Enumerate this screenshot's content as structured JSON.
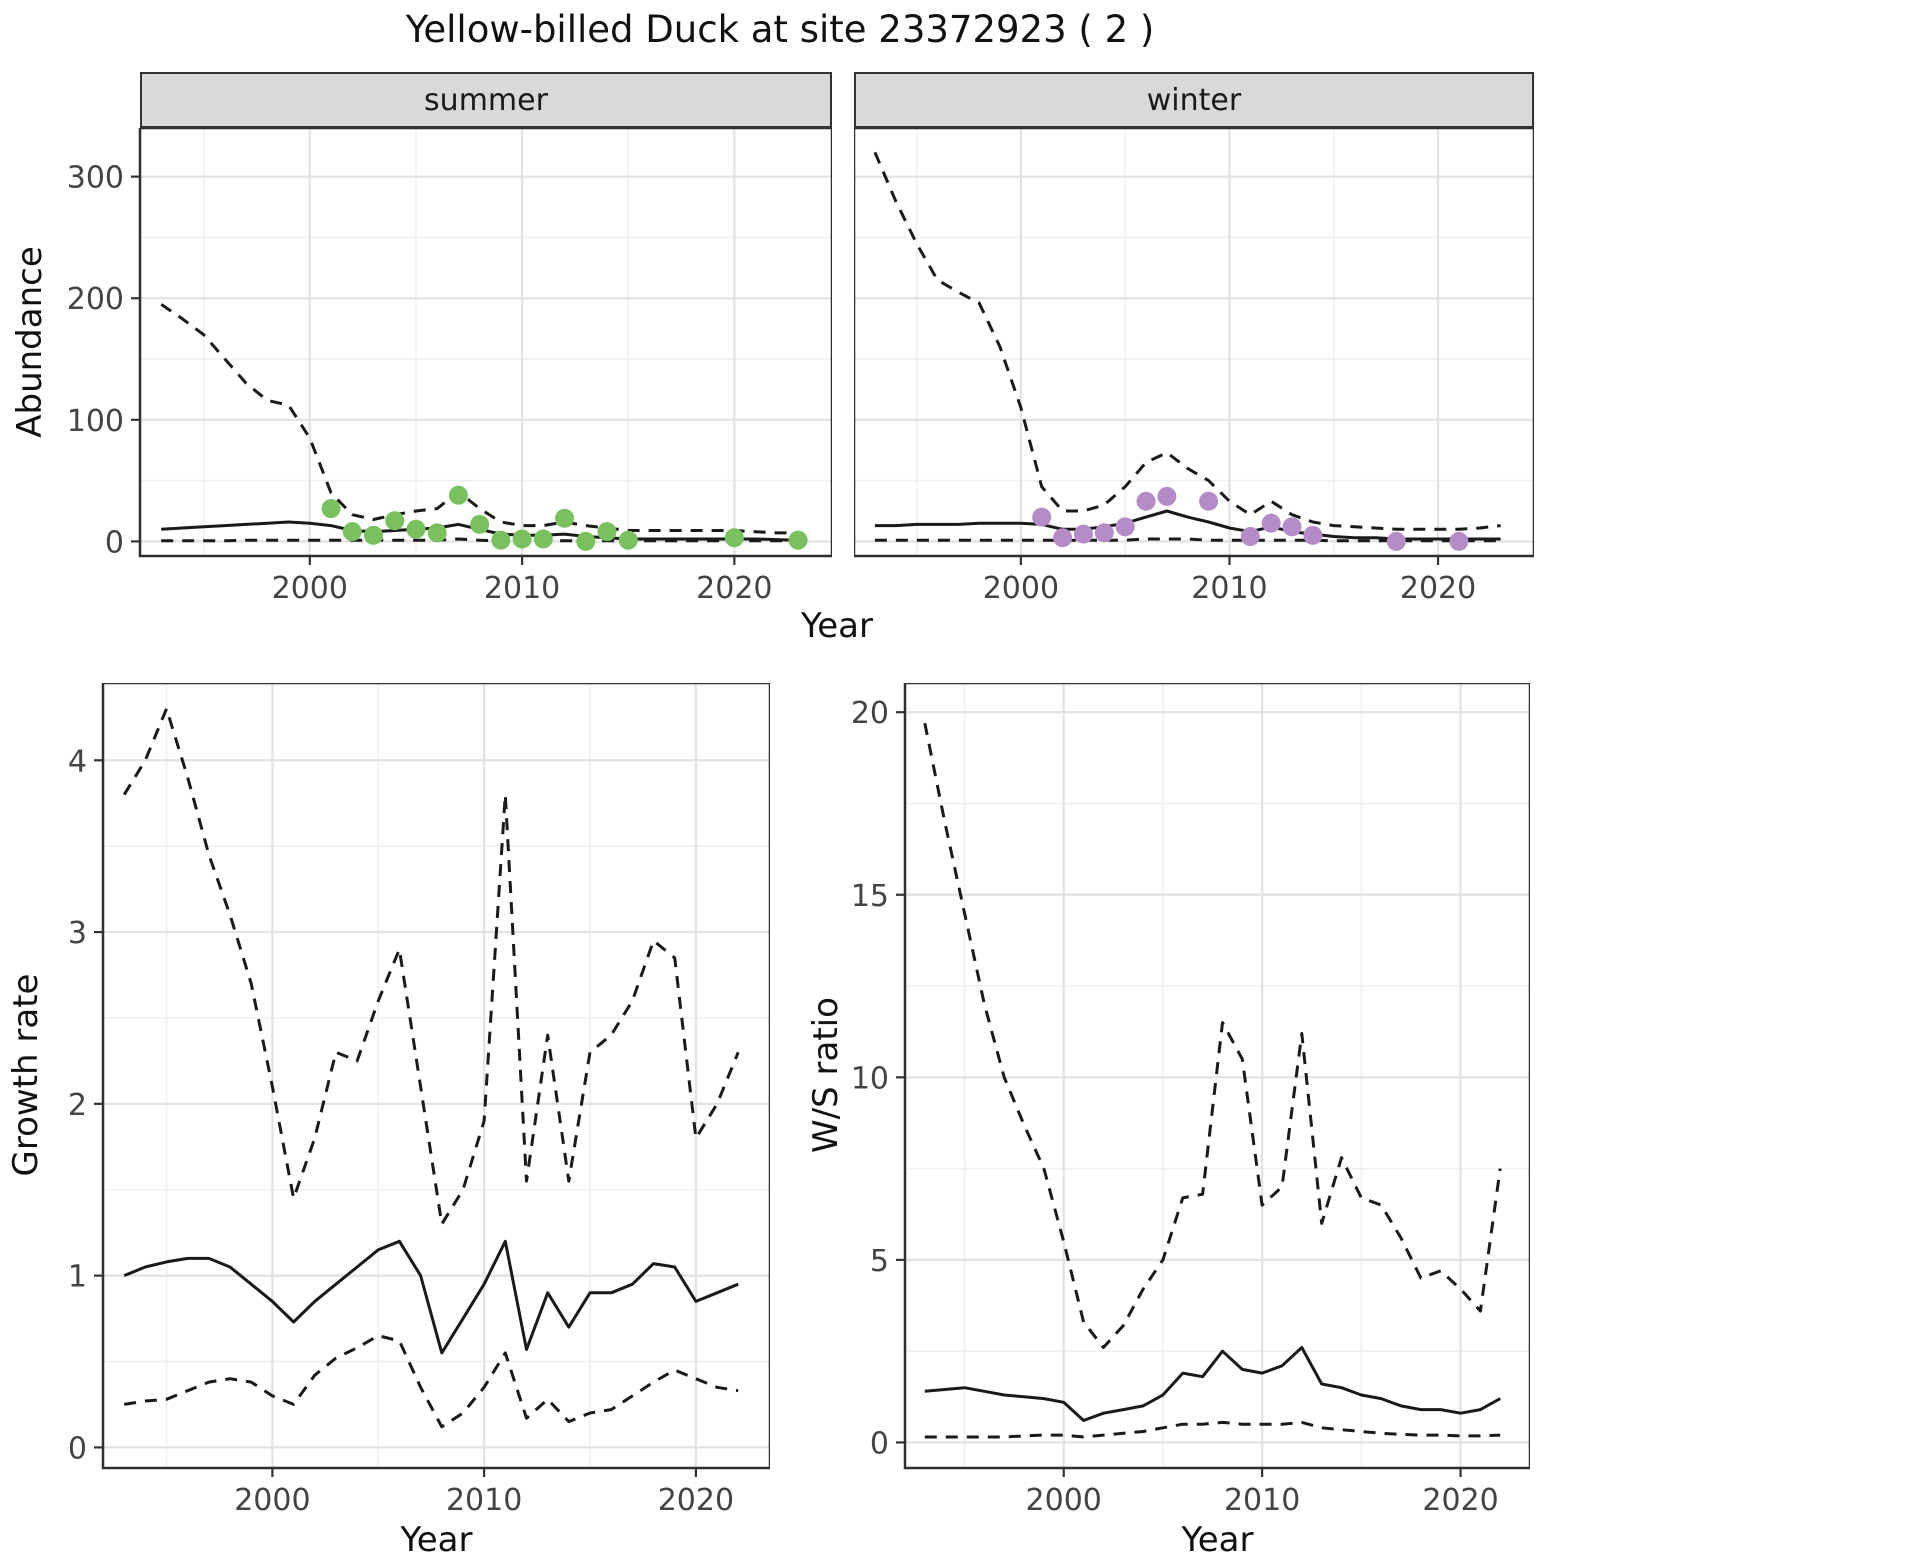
{
  "title": "Yellow-billed Duck at site 23372923 ( 2 )",
  "background": "#ffffff",
  "style": {
    "line_color": "#1a1a1a",
    "grid_major": "#e2e2e2",
    "grid_minor": "#f0f0f0",
    "panel_border": "#2f2f2f",
    "strip_fill": "#d9d9d9",
    "tick_text": "#444444",
    "summer_point_color": "#78c15e",
    "winter_point_color": "#b58cc8"
  },
  "chart_data": [
    {
      "id": "abundance-summer",
      "type": "line",
      "facet": "summer",
      "xlabel": "Year",
      "ylabel": "Abundance",
      "xlim": [
        1992,
        2024.6
      ],
      "ylim": [
        -12,
        340
      ],
      "xticks": [
        2000,
        2010,
        2020
      ],
      "yticks": [
        0,
        100,
        200,
        300
      ],
      "x": [
        1993,
        1994,
        1995,
        1996,
        1997,
        1998,
        1999,
        2000,
        2001,
        2002,
        2003,
        2004,
        2005,
        2006,
        2007,
        2008,
        2009,
        2010,
        2011,
        2012,
        2013,
        2014,
        2015,
        2016,
        2017,
        2018,
        2019,
        2020,
        2021,
        2022,
        2023
      ],
      "series": [
        {
          "name": "upper-95ci",
          "style": "dashed",
          "y": [
            195,
            183,
            170,
            150,
            130,
            116,
            112,
            85,
            40,
            22,
            18,
            22,
            25,
            27,
            41,
            27,
            16,
            13,
            13,
            16,
            13,
            11,
            9,
            9,
            9,
            9,
            9,
            9,
            8,
            7,
            7
          ]
        },
        {
          "name": "estimate",
          "style": "solid",
          "y": [
            10,
            11,
            12,
            13,
            14,
            15,
            16,
            15,
            13,
            9,
            8,
            9,
            10,
            11,
            14,
            10,
            6,
            5,
            5,
            6,
            4,
            3,
            2,
            2,
            2,
            2,
            2,
            2,
            2,
            1.5,
            1
          ]
        },
        {
          "name": "lower-95ci",
          "style": "dashed",
          "y": [
            0.5,
            0.5,
            0.5,
            0.5,
            1,
            1,
            1,
            1,
            1,
            1,
            1,
            1,
            1,
            1,
            2,
            1,
            0.5,
            0.5,
            0.5,
            0.5,
            0.5,
            0.5,
            0.5,
            0.5,
            0.5,
            0.5,
            0.5,
            0.5,
            0.5,
            0.5,
            0.5
          ]
        }
      ],
      "points": {
        "name": "observed-counts",
        "color": "#78c15e",
        "x": [
          2001,
          2002,
          2003,
          2004,
          2005,
          2006,
          2007,
          2008,
          2009,
          2010,
          2011,
          2012,
          2013,
          2014,
          2015,
          2020,
          2023
        ],
        "y": [
          27,
          8,
          5,
          17,
          10,
          7,
          38,
          14,
          1,
          2,
          2,
          19,
          0,
          8,
          1,
          3,
          1
        ]
      }
    },
    {
      "id": "abundance-winter",
      "type": "line",
      "facet": "winter",
      "xlabel": "Year",
      "ylabel": "Abundance",
      "xlim": [
        1992,
        2024.6
      ],
      "ylim": [
        -12,
        340
      ],
      "xticks": [
        2000,
        2010,
        2020
      ],
      "yticks": [
        0,
        100,
        200,
        300
      ],
      "x": [
        1993,
        1994,
        1995,
        1996,
        1997,
        1998,
        1999,
        2000,
        2001,
        2002,
        2003,
        2004,
        2005,
        2006,
        2007,
        2008,
        2009,
        2010,
        2011,
        2012,
        2013,
        2014,
        2015,
        2016,
        2017,
        2018,
        2019,
        2020,
        2021,
        2022,
        2023
      ],
      "series": [
        {
          "name": "upper-95ci",
          "style": "dashed",
          "y": [
            320,
            280,
            245,
            215,
            205,
            196,
            160,
            110,
            45,
            25,
            25,
            30,
            45,
            65,
            73,
            60,
            50,
            33,
            22,
            33,
            22,
            16,
            13,
            12,
            11,
            10,
            10,
            10,
            10,
            11,
            13
          ]
        },
        {
          "name": "estimate",
          "style": "solid",
          "y": [
            13,
            13,
            14,
            14,
            14,
            15,
            15,
            15,
            14,
            10,
            10,
            12,
            15,
            20,
            25,
            20,
            16,
            11,
            8,
            12,
            8,
            6,
            4,
            3,
            3,
            2,
            2,
            2,
            2,
            2,
            2
          ]
        },
        {
          "name": "lower-95ci",
          "style": "dashed",
          "y": [
            1,
            1,
            1,
            1,
            1,
            1,
            1,
            1,
            1,
            1,
            1,
            1,
            1,
            2,
            2,
            2,
            1,
            1,
            1,
            1,
            1,
            1,
            0.5,
            0.5,
            0.5,
            0.5,
            0.5,
            0.5,
            0.5,
            0.5,
            0.5
          ]
        }
      ],
      "points": {
        "name": "observed-counts",
        "color": "#b58cc8",
        "x": [
          2001,
          2002,
          2003,
          2004,
          2005,
          2006,
          2007,
          2009,
          2011,
          2012,
          2013,
          2014,
          2018,
          2021
        ],
        "y": [
          20,
          3,
          6,
          7,
          12,
          33,
          37,
          33,
          4,
          15,
          12,
          5,
          0,
          0
        ]
      }
    },
    {
      "id": "growth-rate",
      "type": "line",
      "xlabel": "Year",
      "ylabel": "Growth rate",
      "xlim": [
        1992,
        2023.5
      ],
      "ylim": [
        -0.12,
        4.45
      ],
      "xticks": [
        2000,
        2010,
        2020
      ],
      "yticks": [
        0,
        1,
        2,
        3,
        4
      ],
      "x": [
        1993,
        1994,
        1995,
        1996,
        1997,
        1998,
        1999,
        2000,
        2001,
        2002,
        2003,
        2004,
        2005,
        2006,
        2007,
        2008,
        2009,
        2010,
        2011,
        2012,
        2013,
        2014,
        2015,
        2016,
        2017,
        2018,
        2019,
        2020,
        2021,
        2022
      ],
      "series": [
        {
          "name": "upper-95ci",
          "style": "dashed",
          "y": [
            3.8,
            4.0,
            4.3,
            3.9,
            3.45,
            3.1,
            2.7,
            2.1,
            1.45,
            1.8,
            2.3,
            2.25,
            2.6,
            2.9,
            2.1,
            1.3,
            1.5,
            1.9,
            3.8,
            1.55,
            2.4,
            1.55,
            2.3,
            2.4,
            2.6,
            2.95,
            2.85,
            1.8,
            2.0,
            2.3
          ]
        },
        {
          "name": "estimate",
          "style": "solid",
          "y": [
            1.0,
            1.05,
            1.08,
            1.1,
            1.1,
            1.05,
            0.95,
            0.85,
            0.73,
            0.85,
            0.95,
            1.05,
            1.15,
            1.2,
            1.0,
            0.55,
            0.75,
            0.95,
            1.2,
            0.57,
            0.9,
            0.7,
            0.9,
            0.9,
            0.95,
            1.07,
            1.05,
            0.85,
            0.9,
            0.95
          ]
        },
        {
          "name": "lower-95ci",
          "style": "dashed",
          "y": [
            0.25,
            0.27,
            0.28,
            0.33,
            0.38,
            0.4,
            0.38,
            0.3,
            0.25,
            0.42,
            0.52,
            0.58,
            0.65,
            0.62,
            0.35,
            0.12,
            0.2,
            0.35,
            0.55,
            0.17,
            0.28,
            0.15,
            0.2,
            0.22,
            0.3,
            0.38,
            0.45,
            0.4,
            0.35,
            0.33
          ]
        }
      ]
    },
    {
      "id": "ws-ratio",
      "type": "line",
      "xlabel": "Year",
      "ylabel": "W/S ratio",
      "xlim": [
        1992,
        2023.5
      ],
      "ylim": [
        -0.7,
        20.8
      ],
      "xticks": [
        2000,
        2010,
        2020
      ],
      "yticks": [
        0,
        5,
        10,
        15,
        20
      ],
      "x": [
        1993,
        1994,
        1995,
        1996,
        1997,
        1998,
        1999,
        2000,
        2001,
        2002,
        2003,
        2004,
        2005,
        2006,
        2007,
        2008,
        2009,
        2010,
        2011,
        2012,
        2013,
        2014,
        2015,
        2016,
        2017,
        2018,
        2019,
        2020,
        2021,
        2022
      ],
      "series": [
        {
          "name": "upper-95ci",
          "style": "dashed",
          "y": [
            19.7,
            17,
            14.5,
            12,
            10,
            8.7,
            7.5,
            5.5,
            3.3,
            2.6,
            3.2,
            4.2,
            5.0,
            6.7,
            6.8,
            11.5,
            10.5,
            6.5,
            7.0,
            11.2,
            6.0,
            7.8,
            6.7,
            6.5,
            5.6,
            4.5,
            4.7,
            4.2,
            3.6,
            7.5
          ]
        },
        {
          "name": "estimate",
          "style": "solid",
          "y": [
            1.4,
            1.45,
            1.5,
            1.4,
            1.3,
            1.25,
            1.2,
            1.1,
            0.6,
            0.8,
            0.9,
            1.0,
            1.3,
            1.9,
            1.8,
            2.5,
            2.0,
            1.9,
            2.1,
            2.6,
            1.6,
            1.5,
            1.3,
            1.2,
            1.0,
            0.9,
            0.9,
            0.8,
            0.9,
            1.2
          ]
        },
        {
          "name": "lower-95ci",
          "style": "dashed",
          "y": [
            0.15,
            0.15,
            0.15,
            0.15,
            0.15,
            0.18,
            0.2,
            0.2,
            0.15,
            0.2,
            0.25,
            0.3,
            0.4,
            0.5,
            0.5,
            0.55,
            0.5,
            0.5,
            0.5,
            0.55,
            0.4,
            0.35,
            0.3,
            0.25,
            0.22,
            0.2,
            0.2,
            0.18,
            0.18,
            0.2
          ]
        }
      ]
    }
  ]
}
